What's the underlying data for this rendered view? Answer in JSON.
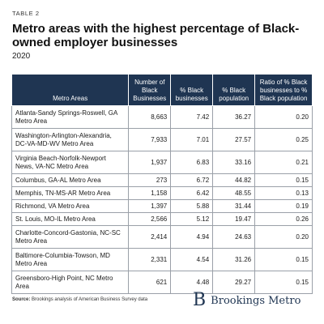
{
  "header": {
    "table_label": "TABLE 2",
    "title": "Metro areas with the highest percentage of Black-owned employer businesses",
    "subtitle": "2020"
  },
  "table": {
    "columns": [
      "Metro Areas",
      "Number of Black Businesses",
      "% Black businesses",
      "% Black population",
      "Ratio of % Black businesses to % Black population"
    ],
    "rows": [
      {
        "area": "Atlanta-Sandy Springs-Roswell, GA Metro Area",
        "number": "8,663",
        "pct_bus": "7.42",
        "pct_pop": "36.27",
        "ratio": "0.20"
      },
      {
        "area": "Washington-Arlington-Alexandria, DC-VA-MD-WV Metro Area",
        "number": "7,933",
        "pct_bus": "7.01",
        "pct_pop": "27.57",
        "ratio": "0.25"
      },
      {
        "area": "Virginia Beach-Norfolk-Newport News, VA-NC Metro Area",
        "number": "1,937",
        "pct_bus": "6.83",
        "pct_pop": "33.16",
        "ratio": "0.21"
      },
      {
        "area": "Columbus, GA-AL Metro Area",
        "number": "273",
        "pct_bus": "6.72",
        "pct_pop": "44.82",
        "ratio": "0.15"
      },
      {
        "area": "Memphis, TN-MS-AR Metro Area",
        "number": "1,158",
        "pct_bus": "6.42",
        "pct_pop": "48.55",
        "ratio": "0.13"
      },
      {
        "area": "Richmond, VA Metro Area",
        "number": "1,397",
        "pct_bus": "5.88",
        "pct_pop": "31.44",
        "ratio": "0.19"
      },
      {
        "area": "St. Louis, MO-IL Metro Area",
        "number": "2,566",
        "pct_bus": "5.12",
        "pct_pop": "19.47",
        "ratio": "0.26"
      },
      {
        "area": "Charlotte-Concord-Gastonia, NC-SC Metro Area",
        "number": "2,414",
        "pct_bus": "4.94",
        "pct_pop": "24.63",
        "ratio": "0.20"
      },
      {
        "area": "Baltimore-Columbia-Towson, MD Metro Area",
        "number": "2,331",
        "pct_bus": "4.54",
        "pct_pop": "31.26",
        "ratio": "0.15"
      },
      {
        "area": "Greensboro-High Point, NC Metro Area",
        "number": "621",
        "pct_bus": "4.48",
        "pct_pop": "29.27",
        "ratio": "0.15"
      }
    ]
  },
  "footer": {
    "source_label": "Source:",
    "source_text": "Brookings analysis of American Business Survey data",
    "brand_logo": "B",
    "brand_name": "Brookings Metro"
  },
  "colors": {
    "header_bg": "#1f3552",
    "brand": "#1f3552"
  }
}
